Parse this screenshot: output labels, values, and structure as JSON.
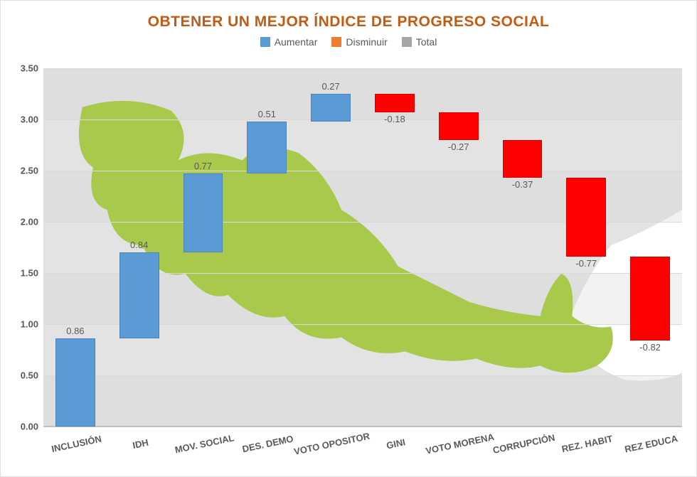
{
  "title": "OBTENER UN MEJOR ÍNDICE DE PROGRESO SOCIAL",
  "title_color": "#c55a11",
  "title_fontsize": 21,
  "legend": {
    "items": [
      {
        "label": "Aumentar",
        "color": "#5b9bd5"
      },
      {
        "label": "Disminuir",
        "color": "#ed7d31"
      },
      {
        "label": "Total",
        "color": "#a5a5a5"
      }
    ],
    "fontsize": 14
  },
  "chart": {
    "type": "waterfall",
    "ylim": [
      0,
      3.5
    ],
    "ytick_step": 0.5,
    "ytick_labels": [
      "0.00",
      "0.50",
      "1.00",
      "1.50",
      "2.00",
      "2.50",
      "3.00",
      "3.50"
    ],
    "grid_color": "#d9d9d9",
    "axis_color": "#bfbfbf",
    "background_band_colors": [
      "#f2f2f2",
      "#ffffff"
    ],
    "map_color": "#a8c94b",
    "map_secondary_color": "#d0d0d0",
    "categories": [
      {
        "label": "INCLUSIÓN",
        "value": 0.86,
        "label_text": "0.86",
        "type": "increase"
      },
      {
        "label": "IDH",
        "value": 0.84,
        "label_text": "0.84",
        "type": "increase"
      },
      {
        "label": "MOV. SOCIAL",
        "value": 0.77,
        "label_text": "0.77",
        "type": "increase"
      },
      {
        "label": "DES. DEMO",
        "value": 0.51,
        "label_text": "0.51",
        "type": "increase"
      },
      {
        "label": "VOTO OPOSITOR",
        "value": 0.27,
        "label_text": "0.27",
        "type": "increase"
      },
      {
        "label": "GINI",
        "value": -0.18,
        "label_text": "-0.18",
        "type": "decrease"
      },
      {
        "label": "VOTO MORENA",
        "value": -0.27,
        "label_text": "-0.27",
        "type": "decrease"
      },
      {
        "label": "CORRUPCIÓN",
        "value": -0.37,
        "label_text": "-0.37",
        "type": "decrease"
      },
      {
        "label": "REZ. HABIT",
        "value": -0.77,
        "label_text": "-0.77",
        "type": "decrease"
      },
      {
        "label": "REZ EDUCA",
        "value": -0.82,
        "label_text": "-0.82",
        "type": "decrease"
      }
    ],
    "bar_colors": {
      "increase": "#5b9bd5",
      "decrease": "#ff0000"
    },
    "bar_width_ratio": 0.62,
    "label_fontsize": 13,
    "xlabel_fontsize": 13,
    "xlabel_rotation_deg": -12
  }
}
